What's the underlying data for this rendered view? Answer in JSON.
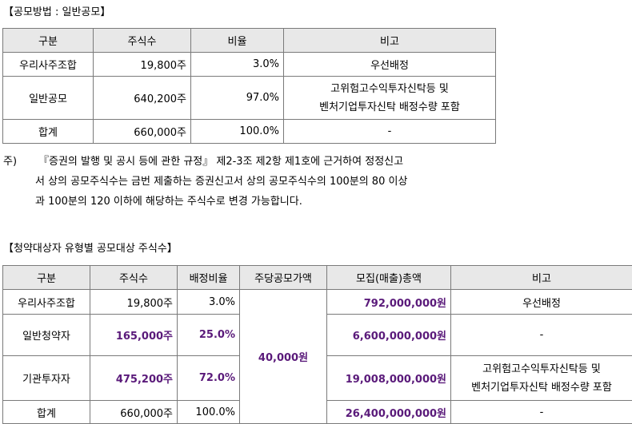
{
  "section1": {
    "title": "【공모방법 : 일반공모】",
    "headers": [
      "구분",
      "주식수",
      "비율",
      "비고"
    ],
    "rows": [
      {
        "category": "우리사주조합",
        "shares": "19,800주",
        "ratio": "3.0%",
        "note": "우선배정"
      },
      {
        "category": "일반공모",
        "shares": "640,200주",
        "ratio": "97.0%",
        "note_line1": "고위험고수익투자신탁등 및",
        "note_line2": "벤처기업투자신탁 배정수량 포함"
      },
      {
        "category": "합계",
        "shares": "660,000주",
        "ratio": "100.0%",
        "note": "-"
      }
    ],
    "footnote": {
      "mark": "주)",
      "line1": "『증권의 발행 및 공시 등에 관한 규정』 제2-3조 제2항 제1호에 근거하여 정정신고",
      "line2": "서 상의 공모주식수는 금번 제출하는 증권신고서 상의 공모주식수의 100분의 80 이상",
      "line3": "과 100분의 120 이하에 해당하는 주식수로 변경 가능합니다."
    }
  },
  "section2": {
    "title": "【청약대상자 유형별 공모대상 주식수】",
    "headers": [
      "구분",
      "주식수",
      "배정비율",
      "주당공모가액",
      "모집(매출)총액",
      "비고"
    ],
    "price_per_share": "40,000원",
    "rows": [
      {
        "category": "우리사주조합",
        "shares": "19,800주",
        "ratio": "3.0%",
        "total": "792,000,000원",
        "note": "우선배정"
      },
      {
        "category": "일반청약자",
        "shares": "165,000주",
        "ratio": "25.0%",
        "total": "6,600,000,000원",
        "note": "-"
      },
      {
        "category": "기관투자자",
        "shares": "475,200주",
        "ratio": "72.0%",
        "total": "19,008,000,000원",
        "note_line1": "고위험고수익투자신탁등 및",
        "note_line2": "벤처기업투자신탁 배정수량 포함"
      },
      {
        "category": "합계",
        "shares": "660,000주",
        "ratio": "100.0%",
        "total": "26,400,000,000원",
        "note": "-"
      }
    ]
  },
  "colors": {
    "header_bg": "#e8e8e8",
    "emphasis_purple": "#5a1a7a",
    "border": "#7a7a7a"
  }
}
